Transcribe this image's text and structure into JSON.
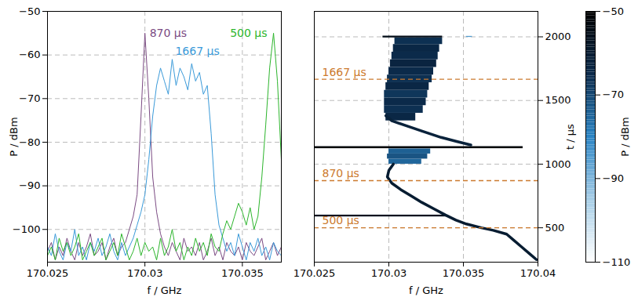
{
  "chart_data": [
    {
      "type": "line",
      "x_label": "f / GHz",
      "y_label": "P / dBm",
      "xlim": [
        170.025,
        170.037
      ],
      "xticks": [
        170.025,
        170.03,
        170.035
      ],
      "ylim": [
        -107.5,
        -50
      ],
      "yticks": [
        -100,
        -90,
        -80,
        -70,
        -60,
        -50
      ],
      "grid": true,
      "x": [
        170.025,
        170.0252,
        170.0254,
        170.0256,
        170.0258,
        170.026,
        170.0262,
        170.0264,
        170.0266,
        170.0268,
        170.027,
        170.0272,
        170.0274,
        170.0276,
        170.0278,
        170.028,
        170.0282,
        170.0284,
        170.0286,
        170.0288,
        170.029,
        170.0292,
        170.0294,
        170.0296,
        170.0298,
        170.03,
        170.0302,
        170.0304,
        170.0306,
        170.0308,
        170.031,
        170.0312,
        170.0314,
        170.0316,
        170.0318,
        170.032,
        170.0322,
        170.0324,
        170.0326,
        170.0328,
        170.033,
        170.0332,
        170.0334,
        170.0336,
        170.0338,
        170.034,
        170.0342,
        170.0344,
        170.0346,
        170.0348,
        170.035,
        170.0352,
        170.0354,
        170.0356,
        170.0358,
        170.036,
        170.0362,
        170.0364,
        170.0366,
        170.0368,
        170.037
      ],
      "series": [
        {
          "name": "870 µs",
          "color": "#7b4b83",
          "values": [
            -105,
            -103,
            -107,
            -104,
            -106,
            -102,
            -105,
            -107,
            -103,
            -106,
            -104,
            -101,
            -106,
            -105,
            -103,
            -107,
            -104,
            -102,
            -106,
            -104,
            -103,
            -100,
            -97,
            -92,
            -74,
            -55,
            -70,
            -88,
            -96,
            -101,
            -104,
            -106,
            -103,
            -105,
            -107,
            -102,
            -105,
            -104,
            -106,
            -103,
            -107,
            -105,
            -102,
            -106,
            -104,
            -107,
            -103,
            -105,
            -106,
            -104,
            -107,
            -103,
            -105,
            -106,
            -104,
            -102,
            -107,
            -105,
            -103,
            -106,
            -104
          ]
        },
        {
          "name": "1667 µs",
          "color": "#3a9ad9",
          "values": [
            -104,
            -106,
            -101,
            -105,
            -107,
            -103,
            -105,
            -100,
            -106,
            -104,
            -107,
            -103,
            -105,
            -102,
            -106,
            -104,
            -101,
            -105,
            -107,
            -103,
            -106,
            -104,
            -102,
            -99,
            -96,
            -92,
            -84,
            -74,
            -67,
            -63,
            -66,
            -69,
            -61,
            -67,
            -63,
            -65,
            -68,
            -62,
            -66,
            -64,
            -69,
            -67,
            -78,
            -92,
            -99,
            -102,
            -105,
            -103,
            -106,
            -101,
            -104,
            -107,
            -103,
            -105,
            -102,
            -106,
            -104,
            -107,
            -103,
            -105,
            -106
          ]
        },
        {
          "name": "500 µs",
          "color": "#2cb52c",
          "values": [
            -106,
            -104,
            -107,
            -102,
            -105,
            -103,
            -106,
            -104,
            -101,
            -107,
            -105,
            -103,
            -106,
            -104,
            -102,
            -107,
            -105,
            -103,
            -106,
            -101,
            -104,
            -107,
            -105,
            -102,
            -106,
            -103,
            -105,
            -104,
            -107,
            -102,
            -106,
            -104,
            -100,
            -105,
            -103,
            -107,
            -104,
            -106,
            -102,
            -105,
            -103,
            -106,
            -101,
            -104,
            -105,
            -101,
            -98,
            -100,
            -97,
            -94,
            -96,
            -99,
            -95,
            -100,
            -97,
            -88,
            -76,
            -63,
            -55,
            -66,
            -84
          ]
        }
      ]
    },
    {
      "type": "heatmap",
      "x_label": "f / GHz",
      "y_label": "t / µs",
      "xlim": [
        170.025,
        170.04
      ],
      "xticks": [
        170.025,
        170.03,
        170.035,
        170.04
      ],
      "ylim": [
        230,
        2200
      ],
      "yticks": [
        500,
        1000,
        1500,
        2000
      ],
      "grid": true,
      "traces": [
        {
          "f": [
            170.0399,
            170.0394,
            170.0389,
            170.0384,
            170.0379,
            170.037,
            170.0362,
            170.0352,
            170.0345,
            170.0338,
            170.033,
            170.0322,
            170.0315,
            170.0308,
            170.0302,
            170.0299,
            170.03,
            170.0303
          ],
          "t": [
            250,
            300,
            350,
            400,
            450,
            480,
            500,
            530,
            560,
            600,
            650,
            700,
            750,
            800,
            850,
            900,
            950,
            1000
          ],
          "P": -60
        },
        {
          "f": [
            170.0355,
            170.0345,
            170.0335,
            170.0322,
            170.0312,
            170.0302,
            170.0298
          ],
          "t": [
            1150,
            1180,
            1210,
            1260,
            1300,
            1340,
            1380
          ],
          "P": -62
        }
      ],
      "bands": [
        {
          "t": [
            586,
            600
          ],
          "f": [
            170.025,
            170.0339
          ],
          "P": -56
        },
        {
          "t": [
            1000,
            1040
          ],
          "f": [
            170.03,
            170.0322
          ],
          "P": -75
        },
        {
          "t": [
            1040,
            1080
          ],
          "f": [
            170.0299,
            170.0326
          ],
          "P": -72
        },
        {
          "t": [
            1080,
            1120
          ],
          "f": [
            170.03,
            170.0328
          ],
          "P": -74
        },
        {
          "t": [
            1122,
            1138
          ],
          "f": [
            170.025,
            170.039
          ],
          "P": -52
        },
        {
          "t": [
            1340,
            1400
          ],
          "f": [
            170.0298,
            170.0318
          ],
          "P": -64
        },
        {
          "t": [
            1400,
            1460
          ],
          "f": [
            170.0297,
            170.0323
          ],
          "P": -66
        },
        {
          "t": [
            1460,
            1520
          ],
          "f": [
            170.0297,
            170.0325
          ],
          "P": -65
        },
        {
          "t": [
            1520,
            1580
          ],
          "f": [
            170.0297,
            170.0326
          ],
          "P": -67
        },
        {
          "t": [
            1580,
            1640
          ],
          "f": [
            170.0298,
            170.0327
          ],
          "P": -64
        },
        {
          "t": [
            1640,
            1700
          ],
          "f": [
            170.0299,
            170.0329
          ],
          "P": -66
        },
        {
          "t": [
            1700,
            1760
          ],
          "f": [
            170.03,
            170.033
          ],
          "P": -65
        },
        {
          "t": [
            1760,
            1820
          ],
          "f": [
            170.0301,
            170.0332
          ],
          "P": -63
        },
        {
          "t": [
            1820,
            1880
          ],
          "f": [
            170.0302,
            170.0333
          ],
          "P": -65
        },
        {
          "t": [
            1880,
            1940
          ],
          "f": [
            170.0303,
            170.0334
          ],
          "P": -64
        },
        {
          "t": [
            1940,
            1992
          ],
          "f": [
            170.0304,
            170.0336
          ],
          "P": -66
        },
        {
          "t": [
            1992,
            2006
          ],
          "f": [
            170.0296,
            170.0336
          ],
          "P": -55
        },
        {
          "t": [
            1996,
            2004
          ],
          "f": [
            170.0352,
            170.0356
          ],
          "P": -85
        }
      ],
      "markers": {
        "t": [
          500,
          870,
          1667
        ],
        "labels": [
          "500 µs",
          "870 µs",
          "1667 µs"
        ],
        "color": "#cc7a2e"
      },
      "colorbar": {
        "range": [
          -110,
          -50
        ],
        "ticks": [
          -110,
          -90,
          -70,
          -50
        ],
        "label": "P / dBm"
      }
    }
  ]
}
